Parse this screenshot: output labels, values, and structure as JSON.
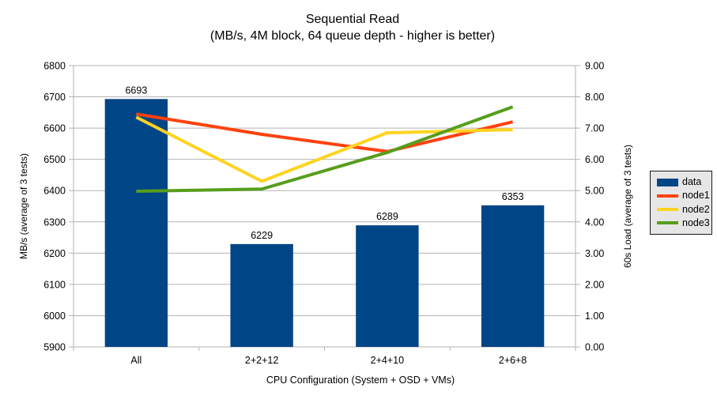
{
  "chart_data": {
    "type": "combo-bar-line",
    "title": "Sequential Read",
    "subtitle": "(MB/s, 4M block, 64 queue depth - higher is better)",
    "xlabel": "CPU Configuration (System + OSD + VMs)",
    "categories": [
      "All",
      "2+2+12",
      "2+4+10",
      "2+6+8"
    ],
    "left_axis": {
      "label": "MB/s (average of 3 tests)",
      "min": 5900,
      "max": 6800,
      "step": 100
    },
    "right_axis": {
      "label": "60s Load (average of 3 tests)",
      "min": 0,
      "max": 9,
      "step": 1,
      "decimals": 2
    },
    "bar_series": {
      "name": "data",
      "color": "#004586",
      "axis": "left",
      "values": [
        6693,
        6229,
        6289,
        6353
      ],
      "data_labels": [
        6693,
        6229,
        6289,
        6353
      ]
    },
    "line_series": [
      {
        "name": "node1",
        "color": "#ff420e",
        "axis": "right",
        "values": [
          7.45,
          6.8,
          6.25,
          7.2
        ]
      },
      {
        "name": "node2",
        "color": "#ffd320",
        "axis": "right",
        "values": [
          7.35,
          5.3,
          6.85,
          6.95
        ]
      },
      {
        "name": "node3",
        "color": "#579d1c",
        "axis": "right",
        "values": [
          4.98,
          5.05,
          6.22,
          7.68
        ]
      }
    ],
    "legend": {
      "position": "right",
      "entries": [
        "data",
        "node1",
        "node2",
        "node3"
      ]
    },
    "grid": {
      "horizontal": true,
      "color": "#b3b3b3"
    },
    "text_color": "#000000",
    "background_color": "#ffffff"
  }
}
